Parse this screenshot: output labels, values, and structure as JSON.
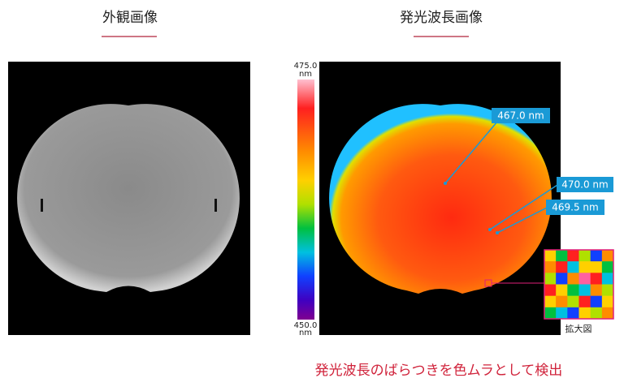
{
  "left_panel": {
    "title": "外観画像"
  },
  "right_panel": {
    "title": "発光波長画像",
    "colorbar": {
      "top_value": "475.0",
      "top_unit": "nm",
      "bottom_value": "450.0",
      "bottom_unit": "nm"
    },
    "callouts": [
      "467.0 nm",
      "470.0 nm",
      "469.5 nm"
    ],
    "zoom_caption": "拡大図"
  },
  "footer": {
    "text": "発光波長のばらつきを色ムラとして検出"
  }
}
